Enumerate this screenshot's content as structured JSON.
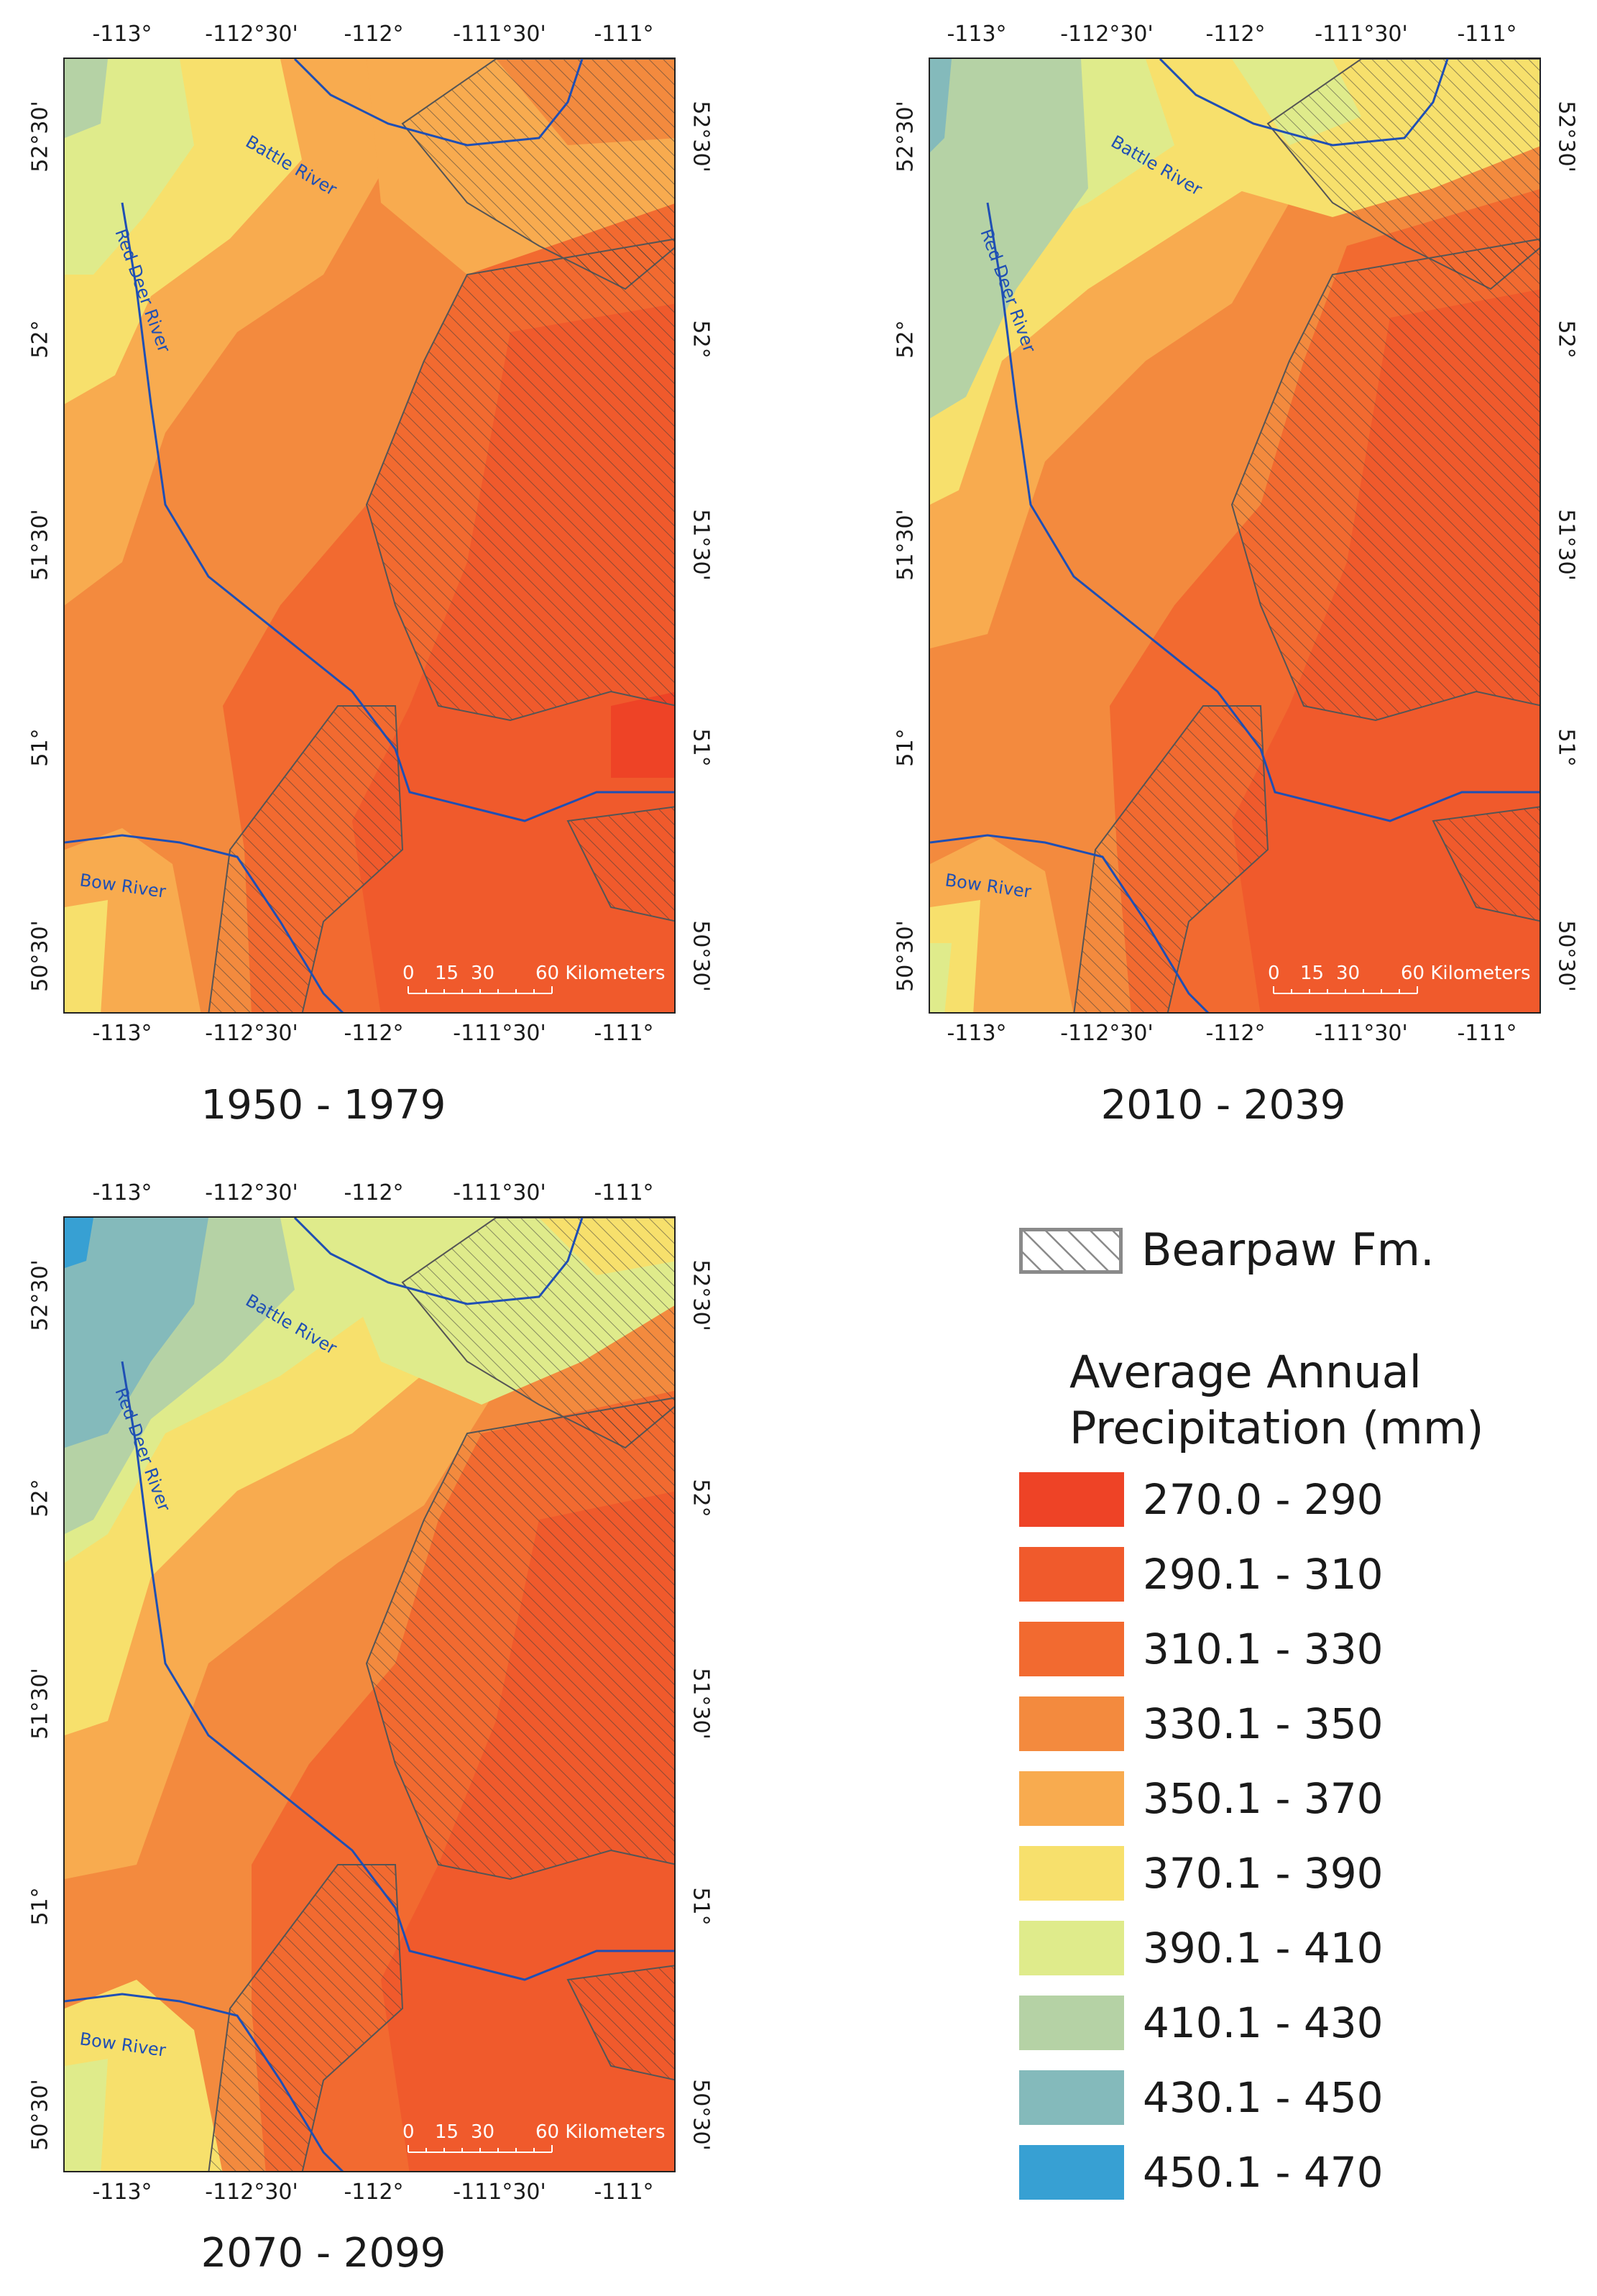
{
  "panels": [
    {
      "id": "p1",
      "period": "1950 - 1979",
      "lon_ticks": [
        "-113°",
        "-112°30'",
        "-112°",
        "-111°30'",
        "-111°"
      ],
      "lat_ticks": [
        "52°30'",
        "52°",
        "51°30'",
        "51°",
        "50°30'"
      ],
      "rivers": {
        "battle": "Battle River",
        "red_deer": "Red Deer River",
        "bow": "Bow River"
      },
      "scale": {
        "label_0": "0",
        "label_15": "15",
        "label_30": "30",
        "label_60": "60 Kilometers"
      }
    },
    {
      "id": "p2",
      "period": "2010 - 2039",
      "lon_ticks": [
        "-113°",
        "-112°30'",
        "-112°",
        "-111°30'",
        "-111°"
      ],
      "lat_ticks": [
        "52°30'",
        "52°",
        "51°30'",
        "51°",
        "50°30'"
      ],
      "rivers": {
        "battle": "Battle River",
        "red_deer": "Red Deer River",
        "bow": "Bow River"
      },
      "scale": {
        "label_0": "0",
        "label_15": "15",
        "label_30": "30",
        "label_60": "60 Kilometers"
      }
    },
    {
      "id": "p3",
      "period": "2070 - 2099",
      "lon_ticks": [
        "-113°",
        "-112°30'",
        "-112°",
        "-111°30'",
        "-111°"
      ],
      "lat_ticks": [
        "52°30'",
        "52°",
        "51°30'",
        "51°",
        "50°30'"
      ],
      "rivers": {
        "battle": "Battle River",
        "red_deer": "Red Deer River",
        "bow": "Bow River"
      },
      "scale": {
        "label_0": "0",
        "label_15": "15",
        "label_30": "30",
        "label_60": "60 Kilometers"
      }
    }
  ],
  "legend": {
    "bearpaw_label": "Bearpaw Fm.",
    "title_line1": "Average Annual",
    "title_line2": "Precipitation (mm)",
    "classes": [
      {
        "label": "270.0 - 290",
        "color": "#ee4326"
      },
      {
        "label": "290.1 - 310",
        "color": "#f05a2c"
      },
      {
        "label": "310.1 - 330",
        "color": "#f26a30"
      },
      {
        "label": "330.1 - 350",
        "color": "#f38a3e"
      },
      {
        "label": "350.1 - 370",
        "color": "#f8ab4f"
      },
      {
        "label": "370.1 - 390",
        "color": "#f7e06c"
      },
      {
        "label": "390.1 - 410",
        "color": "#dfeb8b"
      },
      {
        "label": "410.1 - 430",
        "color": "#b5d2a5"
      },
      {
        "label": "430.1 - 450",
        "color": "#84babb"
      },
      {
        "label": "450.1 - 470",
        "color": "#37a0d3"
      }
    ]
  }
}
